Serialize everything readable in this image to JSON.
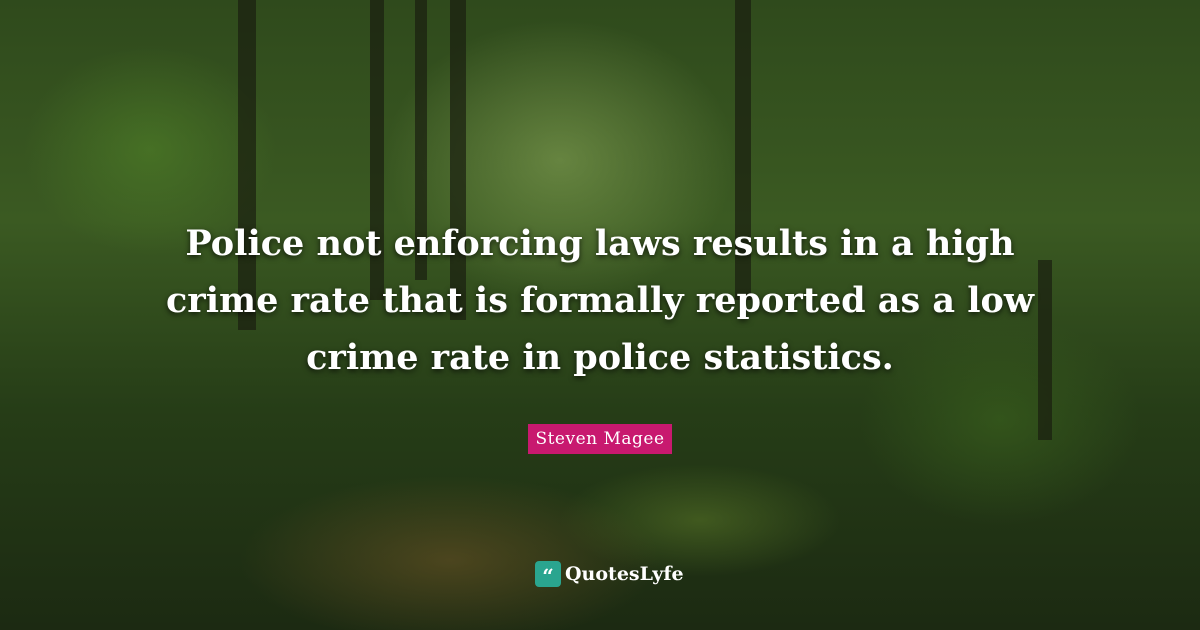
{
  "quote": {
    "lines": [
      "Police not enforcing laws results in a high",
      "crime rate that is formally reported as a low",
      "crime rate in police statistics."
    ]
  },
  "author": "Steven Magee",
  "brand": {
    "name": "QuotesLyfe",
    "icon": "quote-bubble-icon",
    "color": "#2aa58f"
  },
  "colors": {
    "author_badge": "#c8196f"
  }
}
